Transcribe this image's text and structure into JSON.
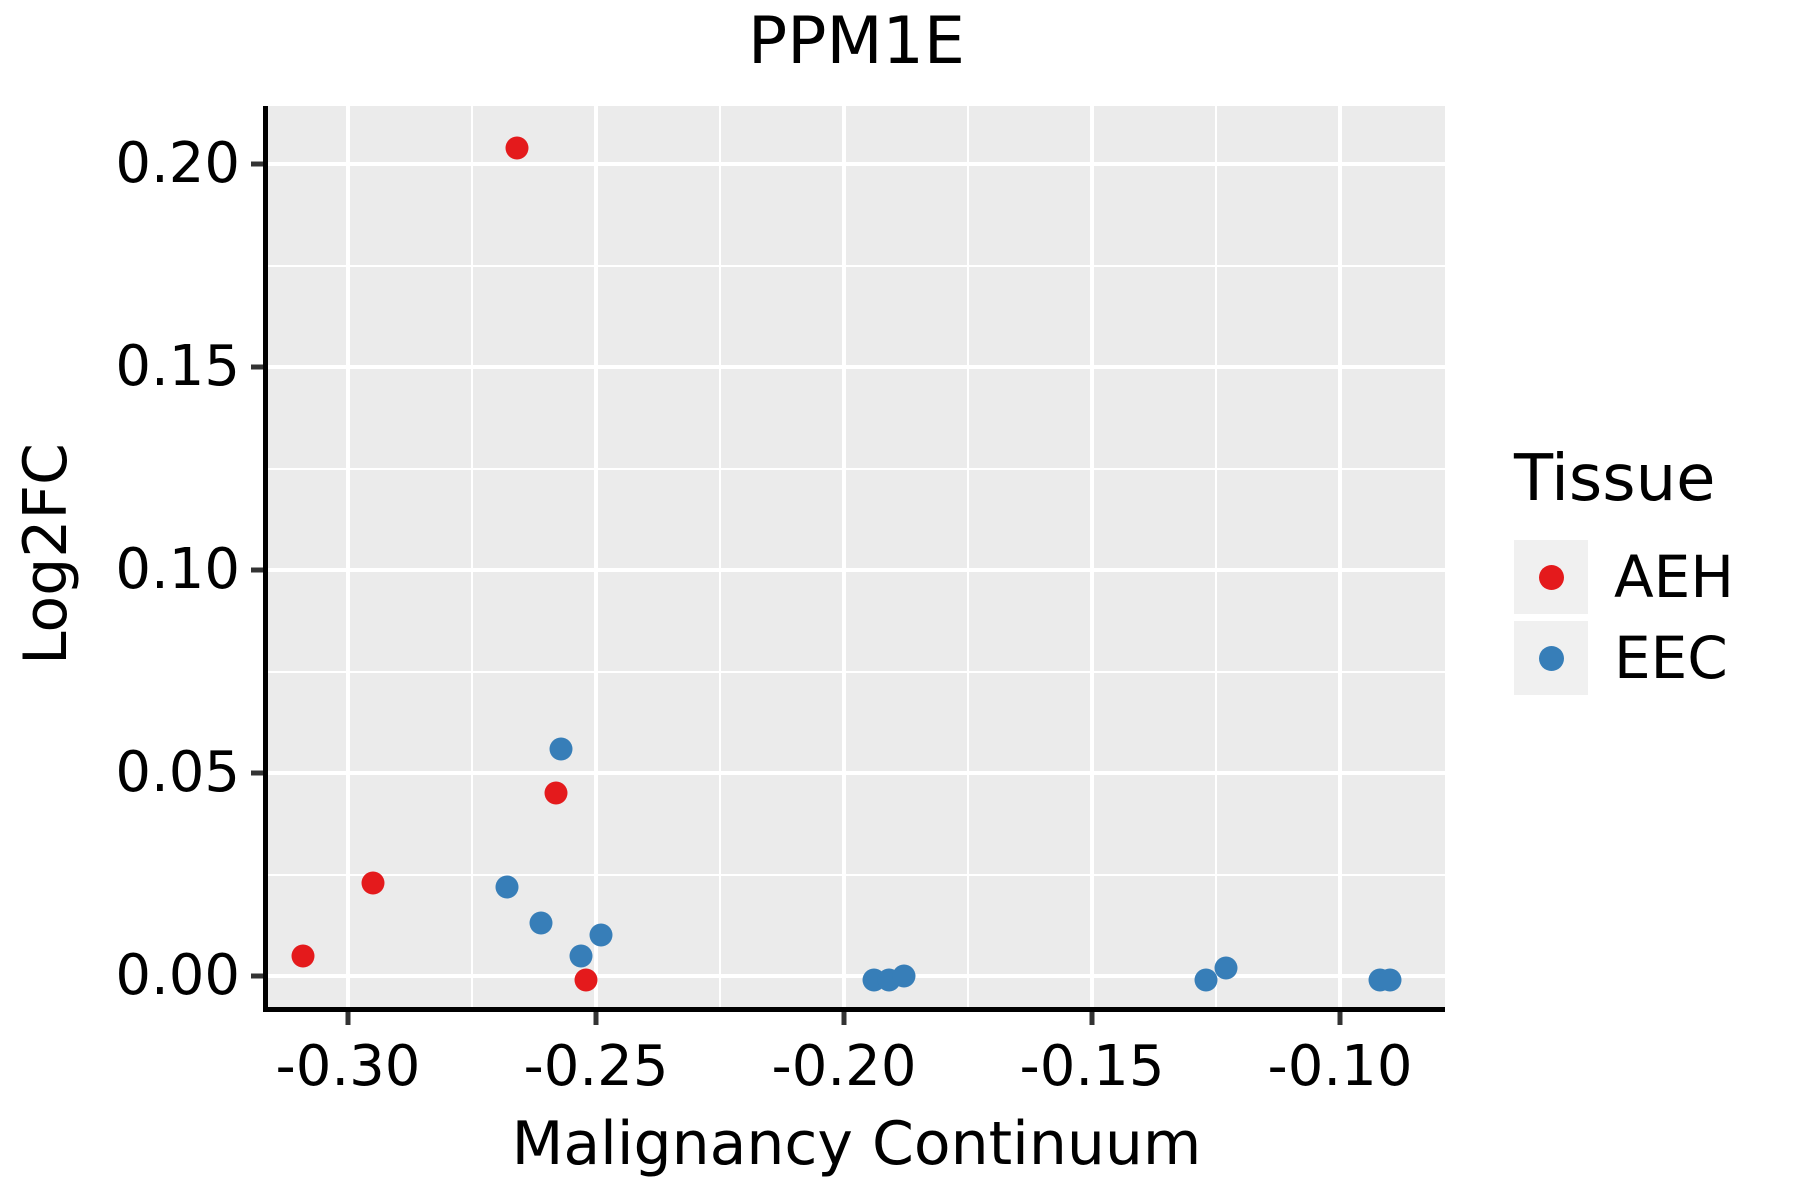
{
  "title": "PPM1E",
  "colors": {
    "aeh": "#E41A1C",
    "eec": "#377EB8",
    "panel_background": "#EBEBEB",
    "gridline": "#FFFFFF",
    "axis_line": "#000000",
    "tick_mark": "#333333",
    "legend_key_background": "#F0F0F0"
  },
  "legend": {
    "title": "Tissue",
    "items": [
      {
        "label": "AEH",
        "color": "#E41A1C"
      },
      {
        "label": "EEC",
        "color": "#377EB8"
      }
    ]
  },
  "chart_data": {
    "type": "scatter",
    "title": "PPM1E",
    "xlabel": "Malignancy Continuum",
    "ylabel": "Log2FC",
    "xlim": [
      -0.316129,
      -0.078831
    ],
    "ylim": [
      -0.007635,
      0.214286
    ],
    "x_ticks": [
      -0.3,
      -0.25,
      -0.2,
      -0.15,
      -0.1
    ],
    "x_tick_labels": [
      "-0.30",
      "-0.25",
      "-0.20",
      "-0.15",
      "-0.10"
    ],
    "x_minor_ticks": [
      -0.275,
      -0.225,
      -0.175,
      -0.125
    ],
    "y_ticks": [
      0.0,
      0.05,
      0.1,
      0.15,
      0.2
    ],
    "y_tick_labels": [
      "0.00",
      "0.05",
      "0.10",
      "0.15",
      "0.20"
    ],
    "y_minor_ticks": [
      0.025,
      0.075,
      0.125,
      0.175
    ],
    "grid": true,
    "legend_title": "Tissue",
    "legend_position": "right",
    "series": [
      {
        "name": "AEH",
        "color": "#E41A1C",
        "points": [
          [
            -0.309,
            0.005
          ],
          [
            -0.295,
            0.023
          ],
          [
            -0.266,
            0.204
          ],
          [
            -0.258,
            0.045
          ],
          [
            -0.252,
            -0.001
          ]
        ]
      },
      {
        "name": "EEC",
        "color": "#377EB8",
        "points": [
          [
            -0.268,
            0.022
          ],
          [
            -0.261,
            0.013
          ],
          [
            -0.257,
            0.056
          ],
          [
            -0.253,
            0.005
          ],
          [
            -0.249,
            0.01
          ],
          [
            -0.194,
            -0.001
          ],
          [
            -0.191,
            -0.001
          ],
          [
            -0.188,
            0.0
          ],
          [
            -0.127,
            -0.001
          ],
          [
            -0.123,
            0.002
          ],
          [
            -0.092,
            -0.001
          ],
          [
            -0.09,
            -0.001
          ]
        ]
      }
    ]
  }
}
